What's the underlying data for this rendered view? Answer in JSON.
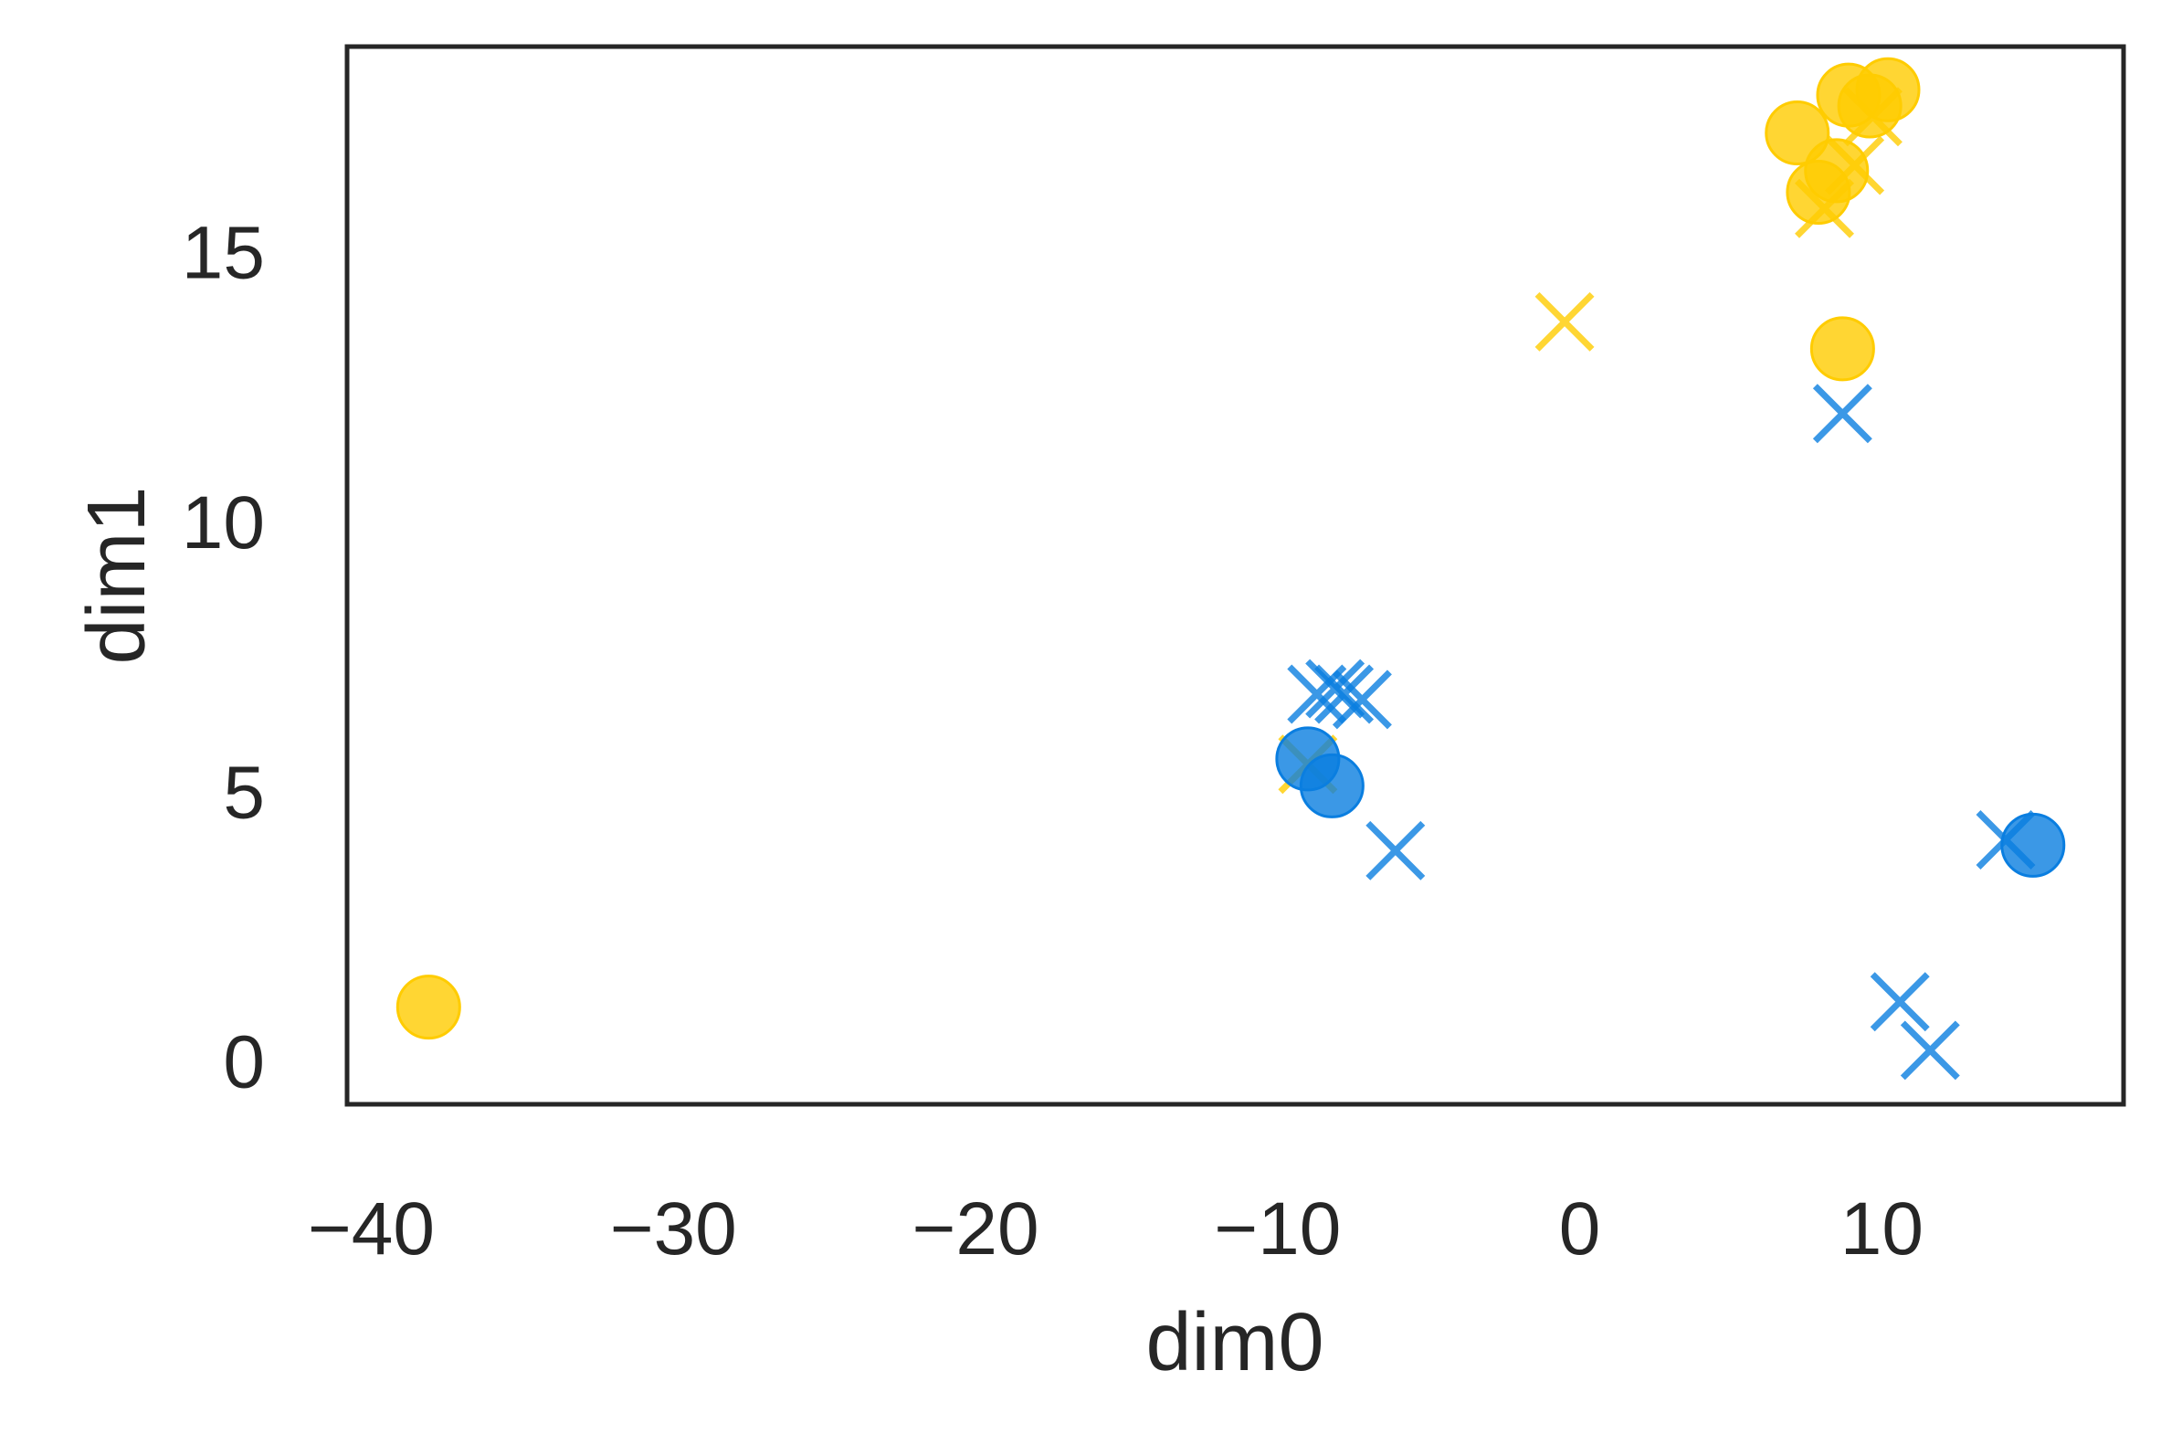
{
  "chart_data": {
    "type": "scatter",
    "title": "",
    "xlabel": "dim0",
    "ylabel": "dim1",
    "xlim": [
      -40.8,
      18.0
    ],
    "ylim": [
      -0.8,
      18.8
    ],
    "xticks": [
      -40,
      -30,
      -20,
      -10,
      0,
      10
    ],
    "yticks": [
      0,
      5,
      10,
      15
    ],
    "xtick_labels": [
      "−40",
      "−30",
      "−20",
      "−10",
      "0",
      "10"
    ],
    "ytick_labels": [
      "0",
      "5",
      "10",
      "15"
    ],
    "grid": false,
    "legend": "none",
    "series": [
      {
        "marker": "circle",
        "color": "#ffcc00",
        "points": [
          {
            "x": -38.1,
            "y": 1.0
          },
          {
            "x": 7.2,
            "y": 17.2
          },
          {
            "x": 8.9,
            "y": 17.9
          },
          {
            "x": 9.6,
            "y": 17.7
          },
          {
            "x": 10.2,
            "y": 18.0
          },
          {
            "x": 8.5,
            "y": 16.5
          },
          {
            "x": 7.9,
            "y": 16.1
          },
          {
            "x": 8.7,
            "y": 13.2
          }
        ]
      },
      {
        "marker": "x",
        "color": "#ffcc00",
        "points": [
          {
            "x": -0.5,
            "y": 13.7
          },
          {
            "x": 8.1,
            "y": 15.8
          },
          {
            "x": 9.1,
            "y": 16.6
          },
          {
            "x": 9.7,
            "y": 17.5
          },
          {
            "x": -9.0,
            "y": 5.5
          }
        ]
      },
      {
        "marker": "circle",
        "color": "#0a7ee0",
        "points": [
          {
            "x": -9.0,
            "y": 5.6
          },
          {
            "x": -8.2,
            "y": 5.1
          },
          {
            "x": 15.0,
            "y": 4.0
          }
        ]
      },
      {
        "marker": "x",
        "color": "#0a7ee0",
        "points": [
          {
            "x": -8.7,
            "y": 6.8
          },
          {
            "x": -8.1,
            "y": 6.9
          },
          {
            "x": -7.8,
            "y": 6.8
          },
          {
            "x": -7.2,
            "y": 6.7
          },
          {
            "x": -6.1,
            "y": 3.9
          },
          {
            "x": 8.7,
            "y": 12.0
          },
          {
            "x": 14.1,
            "y": 4.1
          },
          {
            "x": 10.6,
            "y": 1.1
          },
          {
            "x": 11.6,
            "y": 0.2
          }
        ]
      }
    ]
  }
}
